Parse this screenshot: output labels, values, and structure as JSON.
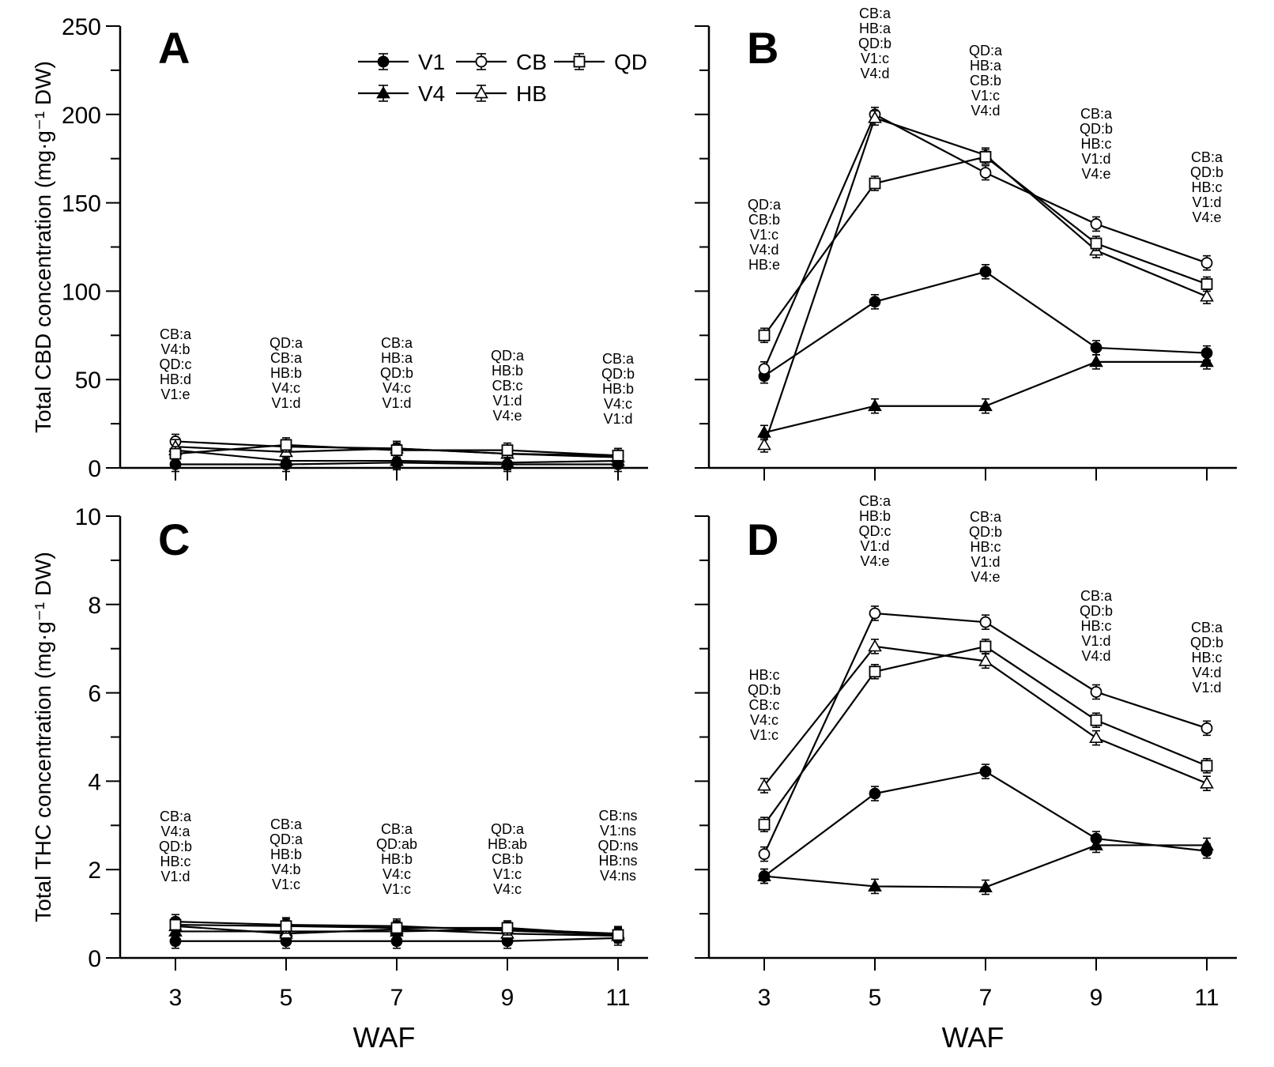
{
  "chart_data": [
    {
      "type": "line",
      "panel_label": "A",
      "ylabel": "Total CBD concentration (mg·g⁻¹ DW)",
      "xlabel": "",
      "ylim": [
        0,
        250
      ],
      "yticks": [
        "0",
        "50",
        "100",
        "150",
        "200",
        "250"
      ],
      "x": [
        3,
        5,
        7,
        9,
        11
      ],
      "show_x_ticklabels": false,
      "legend": {
        "placement": "top-right"
      },
      "series": [
        {
          "name": "V1",
          "marker": "circle-filled",
          "values": [
            2,
            2,
            3,
            2,
            2
          ]
        },
        {
          "name": "V4",
          "marker": "triangle-filled",
          "values": [
            10,
            4,
            4,
            3,
            4
          ]
        },
        {
          "name": "CB",
          "marker": "circle-open",
          "values": [
            15,
            12,
            11,
            8,
            7
          ]
        },
        {
          "name": "HB",
          "marker": "triangle-open",
          "values": [
            12,
            9,
            11,
            8,
            6
          ]
        },
        {
          "name": "QD",
          "marker": "square-open",
          "values": [
            8,
            13,
            10,
            10,
            7
          ]
        }
      ],
      "annotations": [
        [
          "CB:a",
          "V4:b",
          "QD:c",
          "HB:d",
          "V1:e"
        ],
        [
          "QD:a",
          "CB:a",
          "HB:b",
          "V4:c",
          "V1:d"
        ],
        [
          "CB:a",
          "HB:a",
          "QD:b",
          "V4:c",
          "V1:d"
        ],
        [
          "QD:a",
          "HB:b",
          "CB:c",
          "V1:d",
          "V4:e"
        ],
        [
          "CB:a",
          "QD:b",
          "HB:b",
          "V4:c",
          "V1:d"
        ]
      ]
    },
    {
      "type": "line",
      "panel_label": "B",
      "ylabel": "",
      "xlabel": "WAF",
      "ylim": [
        0,
        250
      ],
      "yticks": [],
      "x": [
        3,
        5,
        7,
        9,
        11
      ],
      "show_x_ticklabels": true,
      "series": [
        {
          "name": "V1",
          "marker": "circle-filled",
          "values": [
            52,
            94,
            111,
            68,
            65
          ]
        },
        {
          "name": "V4",
          "marker": "triangle-filled",
          "values": [
            20,
            35,
            35,
            60,
            60
          ]
        },
        {
          "name": "CB",
          "marker": "circle-open",
          "values": [
            56,
            200,
            167,
            138,
            116
          ]
        },
        {
          "name": "HB",
          "marker": "triangle-open",
          "values": [
            13,
            198,
            177,
            123,
            97
          ]
        },
        {
          "name": "QD",
          "marker": "square-open",
          "values": [
            75,
            161,
            176,
            127,
            104
          ]
        }
      ],
      "annotations": [
        [
          "QD:a",
          "CB:b",
          "V1:c",
          "V4:d",
          "HB:e"
        ],
        [
          "CB:a",
          "HB:a",
          "QD:b",
          "V1:c",
          "V4:d"
        ],
        [
          "QD:a",
          "HB:a",
          "CB:b",
          "V1:c",
          "V4:d"
        ],
        [
          "CB:a",
          "QD:b",
          "HB:c",
          "V1:d",
          "V4:e"
        ],
        [
          "CB:a",
          "QD:b",
          "HB:c",
          "V1:d",
          "V4:e"
        ]
      ]
    },
    {
      "type": "line",
      "panel_label": "C",
      "ylabel": "Total THC concentration (mg·g⁻¹ DW)",
      "xlabel": "WAF",
      "ylim": [
        0,
        10
      ],
      "yticks": [
        "0",
        "2",
        "4",
        "6",
        "8",
        "10"
      ],
      "x": [
        3,
        5,
        7,
        9,
        11
      ],
      "show_x_ticklabels": true,
      "series": [
        {
          "name": "V1",
          "marker": "circle-filled",
          "values": [
            0.38,
            0.38,
            0.38,
            0.38,
            0.45
          ]
        },
        {
          "name": "V4",
          "marker": "triangle-filled",
          "values": [
            0.6,
            0.6,
            0.6,
            0.65,
            0.55
          ]
        },
        {
          "name": "CB",
          "marker": "circle-open",
          "values": [
            0.82,
            0.75,
            0.72,
            0.62,
            0.52
          ]
        },
        {
          "name": "HB",
          "marker": "triangle-open",
          "values": [
            0.72,
            0.55,
            0.65,
            0.55,
            0.5
          ]
        },
        {
          "name": "QD",
          "marker": "square-open",
          "values": [
            0.75,
            0.72,
            0.68,
            0.68,
            0.52
          ]
        }
      ],
      "annotations": [
        [
          "CB:a",
          "V4:a",
          "QD:b",
          "HB:c",
          "V1:d"
        ],
        [
          "CB:a",
          "QD:a",
          "HB:b",
          "V4:b",
          "V1:c"
        ],
        [
          "CB:a",
          "QD:ab",
          "HB:b",
          "V4:c",
          "V1:c"
        ],
        [
          "QD:a",
          "HB:ab",
          "CB:b",
          "V1:c",
          "V4:c"
        ],
        [
          "CB:ns",
          "V1:ns",
          "QD:ns",
          "HB:ns",
          "V4:ns"
        ]
      ]
    },
    {
      "type": "line",
      "panel_label": "D",
      "ylabel": "",
      "xlabel": "WAF",
      "ylim": [
        0,
        10
      ],
      "yticks": [],
      "x": [
        3,
        5,
        7,
        9,
        11
      ],
      "show_x_ticklabels": true,
      "series": [
        {
          "name": "V1",
          "marker": "circle-filled",
          "values": [
            1.85,
            3.72,
            4.22,
            2.7,
            2.42
          ]
        },
        {
          "name": "V4",
          "marker": "triangle-filled",
          "values": [
            1.85,
            1.62,
            1.6,
            2.55,
            2.55
          ]
        },
        {
          "name": "CB",
          "marker": "circle-open",
          "values": [
            2.35,
            7.8,
            7.6,
            6.02,
            5.2
          ]
        },
        {
          "name": "HB",
          "marker": "triangle-open",
          "values": [
            3.9,
            7.05,
            6.72,
            4.98,
            3.95
          ]
        },
        {
          "name": "QD",
          "marker": "square-open",
          "values": [
            3.02,
            6.48,
            7.05,
            5.38,
            4.35
          ]
        }
      ],
      "annotations": [
        [
          "HB:c",
          "QD:b",
          "CB:c",
          "V4:c",
          "V1:c"
        ],
        [
          "CB:a",
          "HB:b",
          "QD:c",
          "V1:d",
          "V4:e"
        ],
        [
          "CB:a",
          "QD:b",
          "HB:c",
          "V1:d",
          "V4:e"
        ],
        [
          "CB:a",
          "QD:b",
          "HB:c",
          "V1:d",
          "V4:d"
        ],
        [
          "CB:a",
          "QD:b",
          "HB:c",
          "V4:d",
          "V1:d"
        ]
      ]
    }
  ]
}
